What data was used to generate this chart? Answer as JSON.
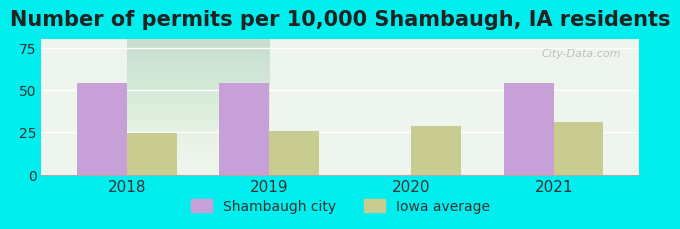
{
  "title": "Number of permits per 10,000 Shambaugh, IA residents",
  "years": [
    2018,
    2019,
    2020,
    2021
  ],
  "shambaugh_values": [
    54.0,
    54.0,
    0.0,
    54.0
  ],
  "iowa_values": [
    24.5,
    26.0,
    29.0,
    31.0
  ],
  "shambaugh_color": "#c8a0d8",
  "iowa_color": "#c8cc90",
  "background_color": "#00eeee",
  "plot_bg_gradient_top": "#f0f8f0",
  "plot_bg_gradient_bottom": "#ffffff",
  "ylim": [
    0,
    80
  ],
  "yticks": [
    0,
    25,
    50,
    75
  ],
  "bar_width": 0.35,
  "title_fontsize": 15,
  "legend_labels": [
    "Shambaugh city",
    "Iowa average"
  ],
  "watermark": "City-Data.com"
}
